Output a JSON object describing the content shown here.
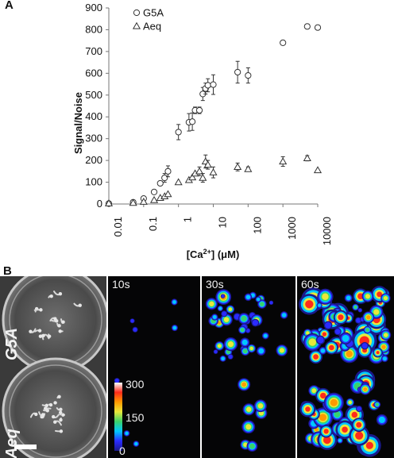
{
  "figure": {
    "panel_a_label": "A",
    "panel_b_label": "B"
  },
  "chart_data": {
    "type": "scatter",
    "x_scale": "log",
    "xlim": [
      0.01,
      10000
    ],
    "ylim": [
      0,
      900
    ],
    "xlabel_main": "[Ca",
    "xlabel_sup": "2+",
    "xlabel_unit": "] (μM)",
    "ylabel": "Signal/Noise",
    "x_ticks": [
      "0.01",
      "0.1",
      "1",
      "10",
      "100",
      "1000",
      "10000"
    ],
    "y_ticks": [
      "0",
      "100",
      "200",
      "300",
      "400",
      "500",
      "600",
      "700",
      "800",
      "900"
    ],
    "legend_position": "top-left",
    "series": [
      {
        "name": "G5A",
        "marker": "circle",
        "points": [
          {
            "x": 0.01,
            "y": 2
          },
          {
            "x": 0.05,
            "y": 8
          },
          {
            "x": 0.1,
            "y": 25
          },
          {
            "x": 0.2,
            "y": 55
          },
          {
            "x": 0.3,
            "y": 95
          },
          {
            "x": 0.4,
            "y": 120,
            "err": 20
          },
          {
            "x": 0.5,
            "y": 150,
            "err": 25
          },
          {
            "x": 1,
            "y": 330,
            "err": 35
          },
          {
            "x": 2,
            "y": 375,
            "err": 40
          },
          {
            "x": 2.5,
            "y": 378,
            "err": 40
          },
          {
            "x": 3,
            "y": 430,
            "err": 15
          },
          {
            "x": 4,
            "y": 430,
            "err": 15
          },
          {
            "x": 5,
            "y": 505,
            "err": 30
          },
          {
            "x": 6,
            "y": 530,
            "err": 25
          },
          {
            "x": 7,
            "y": 545,
            "err": 30
          },
          {
            "x": 10,
            "y": 548,
            "err": 45
          },
          {
            "x": 50,
            "y": 605,
            "err": 50
          },
          {
            "x": 100,
            "y": 590,
            "err": 35
          },
          {
            "x": 1000,
            "y": 740,
            "err": 10
          },
          {
            "x": 5000,
            "y": 815,
            "err": 10
          },
          {
            "x": 10000,
            "y": 810
          }
        ]
      },
      {
        "name": "Aeq",
        "marker": "triangle",
        "points": [
          {
            "x": 0.01,
            "y": 3
          },
          {
            "x": 0.05,
            "y": 5
          },
          {
            "x": 0.1,
            "y": 10
          },
          {
            "x": 0.2,
            "y": 18
          },
          {
            "x": 0.3,
            "y": 28
          },
          {
            "x": 0.4,
            "y": 35
          },
          {
            "x": 0.5,
            "y": 45
          },
          {
            "x": 1,
            "y": 100
          },
          {
            "x": 2,
            "y": 110
          },
          {
            "x": 2.5,
            "y": 122
          },
          {
            "x": 3,
            "y": 140
          },
          {
            "x": 4,
            "y": 150,
            "err": 20
          },
          {
            "x": 5,
            "y": 120,
            "err": 20
          },
          {
            "x": 6,
            "y": 195,
            "err": 30
          },
          {
            "x": 7,
            "y": 180,
            "err": 20
          },
          {
            "x": 10,
            "y": 145,
            "err": 25
          },
          {
            "x": 50,
            "y": 170,
            "err": 18
          },
          {
            "x": 100,
            "y": 160,
            "err": 10
          },
          {
            "x": 1000,
            "y": 195,
            "err": 22
          },
          {
            "x": 5000,
            "y": 210,
            "err": 12
          },
          {
            "x": 10000,
            "y": 155
          }
        ]
      }
    ]
  },
  "panel_b": {
    "time_labels": [
      "10s",
      "30s",
      "60s"
    ],
    "row_labels": [
      "G5A",
      "Aeq"
    ],
    "colorbar": {
      "max": "300",
      "mid": "150",
      "min": "0",
      "stops": [
        "#1a1a8c",
        "#2b2bff",
        "#00c8ff",
        "#39d26b",
        "#e8e83a",
        "#ff9a00",
        "#ff2a1a",
        "#ffffff"
      ]
    }
  }
}
